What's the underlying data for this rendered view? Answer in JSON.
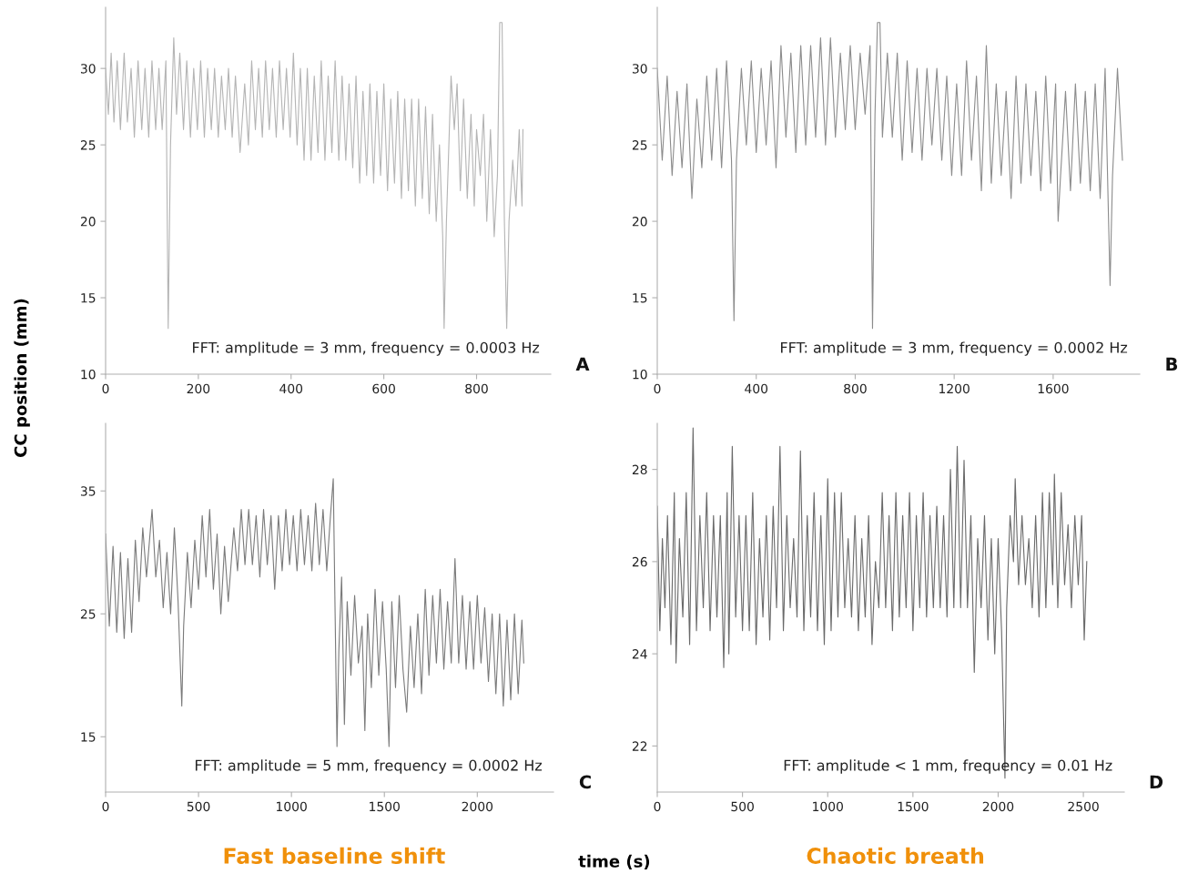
{
  "chart_data": [
    {
      "type": "line",
      "ylabel": "CC position (mm)",
      "xlim": [
        0,
        960
      ],
      "ylim": [
        10,
        34
      ],
      "xticks": [
        0,
        200,
        400,
        600,
        800
      ],
      "yticks": [
        10,
        15,
        20,
        25,
        30
      ],
      "grid": false,
      "legend": false,
      "annotations": [
        "FFT: amplitude = 3 mm, frequency = 0.0003 Hz",
        "A"
      ],
      "series": [
        {
          "color": "#b4b4b4",
          "x": [
            0,
            6,
            12,
            18,
            25,
            32,
            40,
            47,
            55,
            62,
            70,
            78,
            85,
            93,
            100,
            108,
            115,
            122,
            130,
            135,
            140,
            147,
            153,
            160,
            168,
            175,
            183,
            190,
            198,
            205,
            213,
            220,
            228,
            235,
            243,
            250,
            258,
            265,
            273,
            280,
            290,
            300,
            308,
            315,
            323,
            330,
            338,
            345,
            353,
            360,
            368,
            375,
            383,
            390,
            398,
            405,
            413,
            420,
            428,
            435,
            443,
            450,
            458,
            465,
            473,
            480,
            488,
            495,
            503,
            510,
            518,
            525,
            533,
            540,
            548,
            555,
            563,
            570,
            578,
            585,
            593,
            600,
            608,
            615,
            623,
            630,
            638,
            645,
            653,
            660,
            668,
            675,
            683,
            690,
            698,
            705,
            713,
            720,
            727,
            730,
            735,
            745,
            752,
            758,
            765,
            772,
            780,
            788,
            795,
            800,
            808,
            815,
            822,
            830,
            838,
            845,
            850,
            855,
            860,
            865,
            870,
            878,
            885,
            892,
            898,
            900
          ],
          "values": [
            30,
            27,
            31,
            26.5,
            30.5,
            26,
            31,
            26.5,
            30,
            25.5,
            30.5,
            26,
            30,
            25.5,
            30.5,
            26,
            30,
            26,
            30.5,
            13,
            25,
            32,
            27,
            31,
            26,
            30.5,
            25.5,
            30,
            26,
            30.5,
            25.5,
            30,
            26,
            30,
            25.5,
            29.5,
            26,
            30,
            25.5,
            29.5,
            24.5,
            29,
            25,
            30.5,
            26,
            30,
            25.5,
            30.5,
            26,
            30,
            25.5,
            30.5,
            26,
            30,
            25.5,
            31,
            25,
            30,
            24,
            30,
            24,
            29.5,
            24.5,
            30.5,
            24,
            29.5,
            24.5,
            30.5,
            24,
            29.5,
            24,
            29,
            23.5,
            29.5,
            22.5,
            28.5,
            23,
            29,
            22.5,
            28.5,
            23,
            29,
            22,
            28,
            22.5,
            28.5,
            21.5,
            28,
            22,
            28,
            21,
            28,
            21.5,
            27.5,
            20.5,
            27,
            20,
            25,
            19,
            13,
            20,
            29.5,
            26,
            29,
            22,
            28,
            21.5,
            27,
            21,
            26,
            23,
            27,
            20,
            26,
            19,
            23,
            33,
            33,
            20,
            13,
            20,
            24,
            21,
            26,
            21,
            26
          ]
        }
      ]
    },
    {
      "type": "line",
      "xlim": [
        0,
        1950
      ],
      "ylim": [
        10,
        34
      ],
      "xticks": [
        0,
        400,
        800,
        1200,
        1600
      ],
      "yticks": [
        10,
        15,
        20,
        25,
        30
      ],
      "grid": false,
      "legend": false,
      "annotations": [
        "FFT: amplitude = 3 mm, frequency = 0.0002 Hz",
        "B"
      ],
      "series": [
        {
          "color": "#8c8c8c",
          "x": [
            0,
            20,
            40,
            60,
            80,
            100,
            120,
            140,
            160,
            180,
            200,
            220,
            240,
            260,
            280,
            300,
            310,
            320,
            340,
            360,
            380,
            400,
            420,
            440,
            460,
            480,
            500,
            520,
            540,
            560,
            580,
            600,
            620,
            640,
            660,
            680,
            700,
            720,
            740,
            760,
            780,
            800,
            820,
            840,
            860,
            870,
            880,
            890,
            900,
            910,
            930,
            950,
            970,
            990,
            1010,
            1030,
            1050,
            1070,
            1090,
            1110,
            1130,
            1150,
            1170,
            1190,
            1210,
            1230,
            1250,
            1270,
            1290,
            1310,
            1330,
            1350,
            1370,
            1390,
            1410,
            1430,
            1450,
            1470,
            1490,
            1510,
            1530,
            1550,
            1570,
            1590,
            1610,
            1620,
            1630,
            1650,
            1670,
            1690,
            1710,
            1730,
            1750,
            1770,
            1790,
            1810,
            1830,
            1840,
            1860,
            1880
          ],
          "values": [
            30,
            24,
            29.5,
            23,
            28.5,
            23.5,
            29,
            21.5,
            28,
            23.5,
            29.5,
            24,
            30,
            23.5,
            30.5,
            24,
            13.5,
            24,
            30,
            25,
            30.5,
            24.5,
            30,
            25,
            30.5,
            23.5,
            31.5,
            25.5,
            31,
            24.5,
            31.5,
            25,
            31.5,
            25.5,
            32,
            25,
            32,
            25.5,
            31,
            26,
            31.5,
            26,
            31,
            27,
            31.5,
            13,
            27,
            33,
            33,
            25.5,
            31,
            25.5,
            31,
            24,
            30.5,
            24.5,
            30,
            24,
            30,
            25,
            30,
            24,
            29.5,
            23,
            29,
            23,
            30.5,
            24,
            29.5,
            22,
            31.5,
            22.5,
            29,
            23,
            28.5,
            21.5,
            29.5,
            22.5,
            29,
            23,
            28.5,
            22,
            29.5,
            22.5,
            29,
            20,
            23,
            28.5,
            22,
            29,
            22.5,
            28.5,
            22,
            29,
            21.5,
            30,
            15.8,
            23,
            30,
            24
          ]
        }
      ]
    },
    {
      "type": "line",
      "xlabel": "time (s)",
      "xlim": [
        0,
        2410
      ],
      "ylim": [
        10.5,
        40.5
      ],
      "xticks": [
        0,
        500,
        1000,
        1500,
        2000
      ],
      "yticks": [
        15,
        25,
        35
      ],
      "grid": false,
      "legend": false,
      "annotations": [
        "FFT: amplitude = 5 mm, frequency = 0.0002 Hz",
        "C",
        "Fast baseline shift"
      ],
      "series": [
        {
          "color": "#7a7a7a",
          "x": [
            0,
            20,
            40,
            60,
            80,
            100,
            120,
            140,
            160,
            180,
            200,
            220,
            250,
            270,
            290,
            310,
            330,
            350,
            370,
            390,
            410,
            420,
            440,
            460,
            480,
            500,
            520,
            540,
            560,
            580,
            600,
            620,
            640,
            660,
            690,
            710,
            730,
            750,
            770,
            790,
            810,
            830,
            850,
            870,
            890,
            910,
            930,
            950,
            970,
            990,
            1010,
            1030,
            1050,
            1070,
            1090,
            1110,
            1130,
            1150,
            1170,
            1190,
            1210,
            1225,
            1235,
            1245,
            1255,
            1270,
            1285,
            1300,
            1320,
            1340,
            1360,
            1380,
            1395,
            1410,
            1430,
            1450,
            1470,
            1490,
            1510,
            1525,
            1540,
            1560,
            1580,
            1600,
            1620,
            1640,
            1660,
            1680,
            1700,
            1720,
            1740,
            1760,
            1780,
            1800,
            1820,
            1840,
            1860,
            1880,
            1900,
            1920,
            1940,
            1960,
            1980,
            2000,
            2020,
            2040,
            2060,
            2080,
            2100,
            2120,
            2140,
            2160,
            2180,
            2200,
            2220,
            2240,
            2250
          ],
          "values": [
            31.5,
            24,
            30.5,
            23.5,
            30,
            23,
            29.5,
            23.5,
            31,
            26,
            32,
            28,
            33.5,
            28,
            31,
            25.5,
            30,
            25,
            32,
            26,
            17.5,
            24,
            30,
            25.5,
            31,
            27,
            33,
            28,
            33.5,
            27,
            31.5,
            25,
            30.5,
            26,
            32,
            28.5,
            33.5,
            29,
            33.5,
            29,
            33,
            28,
            33.5,
            29,
            33,
            27,
            33,
            28.5,
            33.5,
            29,
            33,
            28.5,
            33.5,
            29,
            33,
            28.5,
            34,
            29,
            33.5,
            28.5,
            33,
            36,
            25,
            14.2,
            22,
            28,
            16,
            26,
            20,
            26.5,
            21,
            24,
            15.5,
            25,
            19,
            27,
            20,
            26,
            20.5,
            14.2,
            26,
            19,
            26.5,
            20.5,
            17,
            24,
            19,
            25,
            18.5,
            27,
            20,
            26.5,
            21,
            27,
            20.5,
            26,
            21,
            29.5,
            21,
            26.5,
            20.5,
            26,
            20.5,
            26.5,
            21,
            25.5,
            19.5,
            25,
            18.5,
            25,
            17.5,
            24.5,
            18,
            25,
            18.5,
            24.5,
            21
          ]
        }
      ]
    },
    {
      "type": "line",
      "xlim": [
        0,
        2740
      ],
      "ylim": [
        21,
        29
      ],
      "xticks": [
        0,
        500,
        1000,
        1500,
        2000,
        2500
      ],
      "yticks": [
        22,
        24,
        26,
        28
      ],
      "grid": false,
      "legend": false,
      "annotations": [
        "FFT: amplitude < 1 mm, frequency = 0.01 Hz",
        "D",
        "Chaotic breath"
      ],
      "series": [
        {
          "color": "#6a6a6a",
          "x": [
            0,
            15,
            30,
            45,
            60,
            80,
            100,
            110,
            130,
            150,
            170,
            190,
            210,
            230,
            250,
            270,
            290,
            310,
            330,
            350,
            370,
            390,
            410,
            420,
            440,
            460,
            480,
            500,
            520,
            540,
            560,
            580,
            600,
            620,
            640,
            660,
            680,
            700,
            720,
            740,
            760,
            780,
            800,
            820,
            840,
            860,
            880,
            900,
            920,
            940,
            960,
            980,
            1000,
            1020,
            1040,
            1060,
            1080,
            1100,
            1120,
            1140,
            1160,
            1180,
            1200,
            1220,
            1240,
            1260,
            1280,
            1300,
            1320,
            1340,
            1360,
            1380,
            1400,
            1420,
            1440,
            1460,
            1480,
            1500,
            1520,
            1540,
            1560,
            1580,
            1600,
            1620,
            1640,
            1660,
            1680,
            1700,
            1720,
            1740,
            1760,
            1780,
            1800,
            1820,
            1840,
            1860,
            1880,
            1900,
            1920,
            1940,
            1960,
            1980,
            2000,
            2020,
            2040,
            2050,
            2070,
            2090,
            2100,
            2120,
            2140,
            2160,
            2180,
            2200,
            2220,
            2240,
            2260,
            2280,
            2300,
            2320,
            2330,
            2350,
            2370,
            2390,
            2410,
            2430,
            2450,
            2470,
            2490,
            2505,
            2520
          ],
          "values": [
            27.2,
            24.5,
            26.5,
            25,
            27,
            24.2,
            27.5,
            23.8,
            26.5,
            24.8,
            27.5,
            24.2,
            28.9,
            24.5,
            27,
            25,
            27.5,
            24.5,
            27,
            24.8,
            27,
            23.7,
            27.5,
            24,
            28.5,
            24.8,
            27,
            24.5,
            27,
            24.5,
            27.5,
            24.2,
            26.5,
            24.8,
            27,
            24.3,
            27.2,
            25,
            28.5,
            24.5,
            27,
            25,
            26.5,
            24.8,
            28.4,
            24.5,
            27,
            24.8,
            27.5,
            24.5,
            27,
            24.2,
            27.8,
            24.5,
            27.5,
            24.8,
            27.5,
            25,
            26.5,
            24.8,
            27,
            24.5,
            26.5,
            24.8,
            27,
            24.2,
            26,
            25,
            27.5,
            25,
            27,
            24.5,
            27.5,
            24.8,
            27,
            25,
            27.5,
            24.5,
            27,
            25,
            27.5,
            24.8,
            27,
            25,
            27.2,
            25,
            27,
            24.8,
            28,
            25,
            28.5,
            25,
            28.2,
            25,
            27,
            23.6,
            26.5,
            25,
            27,
            24.3,
            26.5,
            24,
            26.5,
            24.5,
            21.3,
            25,
            27,
            26,
            27.8,
            25.5,
            27,
            25.5,
            26.5,
            25,
            27,
            24.8,
            27.5,
            25,
            27.5,
            25.5,
            27.9,
            25,
            27.5,
            25.5,
            26.8,
            25,
            27,
            25.5,
            27,
            24.3,
            26
          ]
        }
      ]
    }
  ]
}
